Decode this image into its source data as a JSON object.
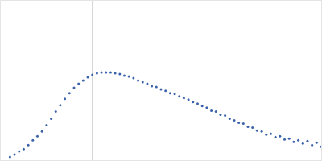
{
  "chart_data": {
    "type": "scatter",
    "color": "#3a62ab",
    "marker": "circle",
    "x": [
      0.1,
      0.15,
      0.2,
      0.25,
      0.3,
      0.35,
      0.4,
      0.45,
      0.5,
      0.55,
      0.6,
      0.65,
      0.7,
      0.75,
      0.8,
      0.85,
      0.9,
      0.95,
      1.0,
      1.05,
      1.1,
      1.15,
      1.2,
      1.25,
      1.3,
      1.35,
      1.4,
      1.45,
      1.5,
      1.55,
      1.6,
      1.65,
      1.7,
      1.75,
      1.8,
      1.85,
      1.9,
      1.95,
      2.0,
      2.05,
      2.1,
      2.15,
      2.2,
      2.25,
      2.3,
      2.35,
      2.4,
      2.45,
      2.5,
      2.55,
      2.6,
      2.65,
      2.7,
      2.75,
      2.8,
      2.85,
      2.9,
      2.95,
      3.0,
      3.05,
      3.1,
      3.15,
      3.2,
      3.25,
      3.3,
      3.35,
      3.4,
      3.45,
      3.5
    ],
    "values": [
      0.04,
      0.07,
      0.11,
      0.14,
      0.19,
      0.25,
      0.3,
      0.36,
      0.44,
      0.52,
      0.61,
      0.69,
      0.77,
      0.84,
      0.91,
      0.96,
      1.0,
      1.04,
      1.07,
      1.09,
      1.1,
      1.1,
      1.1,
      1.09,
      1.08,
      1.06,
      1.05,
      1.03,
      1.0,
      0.98,
      0.96,
      0.93,
      0.92,
      0.89,
      0.87,
      0.84,
      0.83,
      0.8,
      0.78,
      0.76,
      0.73,
      0.71,
      0.68,
      0.66,
      0.62,
      0.61,
      0.57,
      0.56,
      0.52,
      0.5,
      0.47,
      0.46,
      0.42,
      0.41,
      0.37,
      0.36,
      0.32,
      0.33,
      0.29,
      0.3,
      0.26,
      0.27,
      0.23,
      0.25,
      0.21,
      0.24,
      0.19,
      0.22,
      0.17
    ],
    "xlim": [
      0,
      3.5
    ],
    "ylim": [
      0,
      2
    ],
    "xticks": [
      1
    ],
    "yticks": [
      1
    ],
    "grid": true,
    "tick_labels": false
  }
}
